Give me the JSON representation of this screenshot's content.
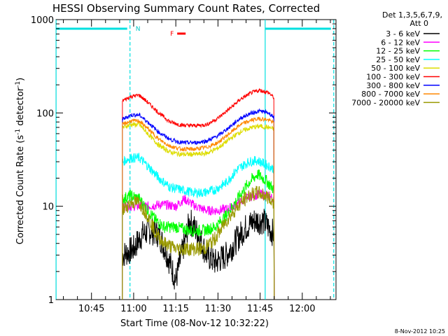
{
  "chart_data": {
    "type": "line",
    "title": "HESSI Observing Summary Count Rates, Corrected",
    "xlabel": "Start Time (08-Nov-12 10:32:22)",
    "ylabel_main": "Corrected Count Rate (s",
    "ylabel_sup1": "-1",
    "ylabel_mid": " detector",
    "ylabel_sup2": "-1",
    "ylabel_end": ")",
    "yscale": "log",
    "ylim": [
      1,
      1000
    ],
    "xlim": [
      "10:32:22",
      "12:12:00"
    ],
    "ytick_labels": [
      {
        "value": 1,
        "label": "1"
      },
      {
        "value": 10,
        "label": "10"
      },
      {
        "value": 100,
        "label": "100"
      },
      {
        "value": 1000,
        "label": "1000"
      }
    ],
    "xtick_labels": [
      {
        "minutes": 45,
        "label": "10:45"
      },
      {
        "minutes": 60,
        "label": "11:00"
      },
      {
        "minutes": 75,
        "label": "11:15"
      },
      {
        "minutes": 90,
        "label": "11:30"
      },
      {
        "minutes": 105,
        "label": "11:45"
      },
      {
        "minutes": 120,
        "label": "12:00"
      }
    ],
    "legend_header": [
      "Det 1,3,5,6,7,9,",
      "Att 0"
    ],
    "series": [
      {
        "name": "3 - 6 keV",
        "color": "#000000",
        "knots": [
          [
            56,
            3
          ],
          [
            60,
            3.5
          ],
          [
            63,
            5
          ],
          [
            66,
            5.5
          ],
          [
            69,
            5
          ],
          [
            72,
            3
          ],
          [
            75,
            1.6
          ],
          [
            78,
            4
          ],
          [
            80,
            7
          ],
          [
            83,
            5
          ],
          [
            86,
            3
          ],
          [
            89,
            2.5
          ],
          [
            93,
            3
          ],
          [
            97,
            4.5
          ],
          [
            100,
            6
          ],
          [
            103,
            7
          ],
          [
            106,
            7
          ],
          [
            110,
            5
          ]
        ]
      },
      {
        "name": "6 - 12 keV",
        "color": "#ff00ff",
        "knots": [
          [
            56,
            10
          ],
          [
            60,
            10
          ],
          [
            65,
            10
          ],
          [
            70,
            10.5
          ],
          [
            75,
            10
          ],
          [
            78,
            12
          ],
          [
            82,
            10
          ],
          [
            86,
            9
          ],
          [
            90,
            9
          ],
          [
            94,
            9.5
          ],
          [
            98,
            11
          ],
          [
            102,
            13
          ],
          [
            106,
            13.5
          ],
          [
            110,
            12
          ]
        ]
      },
      {
        "name": "12 - 25 keV",
        "color": "#00ff00",
        "knots": [
          [
            56,
            12
          ],
          [
            59,
            13
          ],
          [
            62,
            12
          ],
          [
            65,
            9
          ],
          [
            68,
            7
          ],
          [
            71,
            6
          ],
          [
            75,
            6
          ],
          [
            80,
            5.5
          ],
          [
            85,
            5.5
          ],
          [
            89,
            6
          ],
          [
            93,
            8
          ],
          [
            97,
            12
          ],
          [
            101,
            18
          ],
          [
            104,
            22
          ],
          [
            107,
            19
          ],
          [
            110,
            15
          ]
        ]
      },
      {
        "name": "25 - 50 keV",
        "color": "#00ffff",
        "knots": [
          [
            56,
            30
          ],
          [
            59,
            33
          ],
          [
            62,
            33
          ],
          [
            65,
            27
          ],
          [
            69,
            20
          ],
          [
            73,
            16
          ],
          [
            77,
            15
          ],
          [
            81,
            14
          ],
          [
            85,
            14
          ],
          [
            89,
            15
          ],
          [
            93,
            18
          ],
          [
            97,
            25
          ],
          [
            101,
            30
          ],
          [
            104,
            31
          ],
          [
            107,
            28
          ],
          [
            110,
            25
          ]
        ]
      },
      {
        "name": "50 - 100 keV",
        "color": "#dddd00",
        "knots": [
          [
            56,
            70
          ],
          [
            59,
            75
          ],
          [
            62,
            75
          ],
          [
            65,
            60
          ],
          [
            69,
            45
          ],
          [
            73,
            38
          ],
          [
            77,
            36
          ],
          [
            82,
            36
          ],
          [
            86,
            37
          ],
          [
            90,
            42
          ],
          [
            94,
            52
          ],
          [
            98,
            63
          ],
          [
            102,
            70
          ],
          [
            105,
            72
          ],
          [
            108,
            70
          ],
          [
            110,
            67
          ]
        ]
      },
      {
        "name": "100 - 300 keV",
        "color": "#ff0000",
        "knots": [
          [
            56,
            135
          ],
          [
            59,
            150
          ],
          [
            62,
            155
          ],
          [
            65,
            130
          ],
          [
            69,
            100
          ],
          [
            73,
            80
          ],
          [
            77,
            74
          ],
          [
            82,
            73
          ],
          [
            86,
            75
          ],
          [
            90,
            88
          ],
          [
            94,
            110
          ],
          [
            98,
            140
          ],
          [
            102,
            165
          ],
          [
            105,
            175
          ],
          [
            108,
            165
          ],
          [
            110,
            145
          ]
        ]
      },
      {
        "name": "300 - 800 keV",
        "color": "#0000ff",
        "knots": [
          [
            56,
            85
          ],
          [
            59,
            95
          ],
          [
            62,
            95
          ],
          [
            65,
            80
          ],
          [
            69,
            62
          ],
          [
            73,
            52
          ],
          [
            77,
            48
          ],
          [
            82,
            48
          ],
          [
            86,
            50
          ],
          [
            90,
            57
          ],
          [
            94,
            70
          ],
          [
            98,
            88
          ],
          [
            102,
            100
          ],
          [
            105,
            105
          ],
          [
            108,
            100
          ],
          [
            110,
            90
          ]
        ]
      },
      {
        "name": "800 - 7000 keV",
        "color": "#ff8800",
        "knots": [
          [
            56,
            75
          ],
          [
            59,
            82
          ],
          [
            62,
            82
          ],
          [
            65,
            68
          ],
          [
            69,
            52
          ],
          [
            73,
            44
          ],
          [
            77,
            41
          ],
          [
            82,
            41
          ],
          [
            86,
            43
          ],
          [
            90,
            48
          ],
          [
            94,
            60
          ],
          [
            98,
            75
          ],
          [
            102,
            84
          ],
          [
            105,
            87
          ],
          [
            108,
            84
          ],
          [
            110,
            78
          ]
        ]
      },
      {
        "name": "7000 - 20000 keV",
        "color": "#999900",
        "knots": [
          [
            56,
            9
          ],
          [
            59,
            11
          ],
          [
            62,
            11
          ],
          [
            65,
            8
          ],
          [
            68,
            5
          ],
          [
            71,
            4
          ],
          [
            75,
            3.5
          ],
          [
            80,
            3.5
          ],
          [
            85,
            3.5
          ],
          [
            89,
            4.5
          ],
          [
            93,
            7
          ],
          [
            97,
            10
          ],
          [
            101,
            13
          ],
          [
            104,
            14
          ],
          [
            107,
            13
          ],
          [
            110,
            11
          ]
        ]
      }
    ],
    "saa_intervals": [
      {
        "start": 32.4,
        "end": 58.7
      },
      {
        "start": 106.8,
        "end": 131.2
      }
    ],
    "night_label": "N",
    "flare_label": "F",
    "flare_interval": {
      "start": 75.5,
      "end": 78.5
    },
    "timestamp": "8-Nov-2012 10:25"
  }
}
